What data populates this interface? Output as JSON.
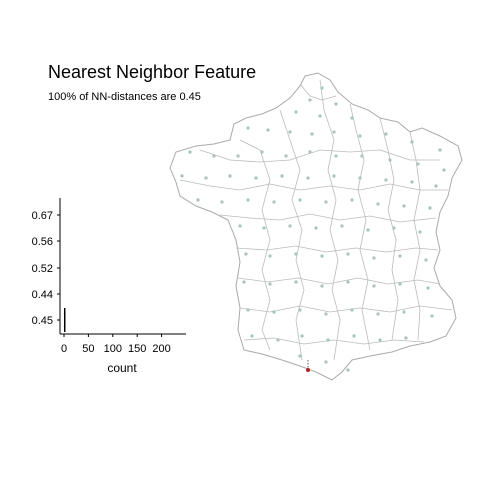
{
  "title": "Nearest Neighbor Feature",
  "subtitle": "100% of NN-distances are 0.45",
  "colors": {
    "point": "#a9c4be",
    "selected": "#b22222",
    "border": "#aaaaaa",
    "axis": "#000000"
  },
  "chart_data": {
    "type": "bar",
    "orientation": "horizontal",
    "categories": [
      "0.67",
      "0.56",
      "0.52",
      "0.44",
      "0.45"
    ],
    "values": [
      0,
      0,
      0,
      0,
      3
    ],
    "xlabel": "count",
    "ylabel": "",
    "xticks": [
      "0",
      "50",
      "100",
      "150",
      "200"
    ],
    "xlim": [
      0,
      250
    ]
  },
  "map": {
    "region": "France departments",
    "selected_point": "one highlighted department (red) near southern border"
  }
}
